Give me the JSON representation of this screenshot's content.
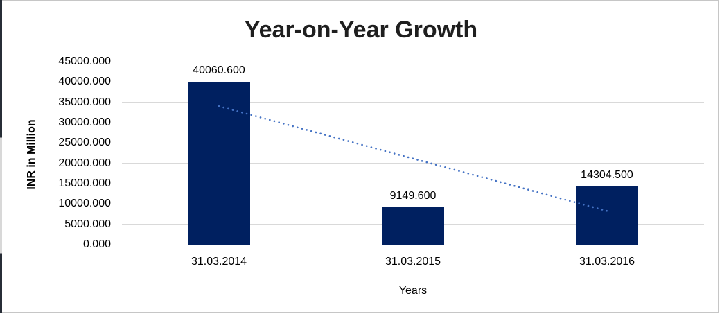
{
  "chart_data": {
    "type": "bar",
    "title": "Year-on-Year Growth",
    "categories": [
      "31.03.2014",
      "31.03.2015",
      "31.03.2016"
    ],
    "values": [
      40060.6,
      9149.6,
      14304.5
    ],
    "data_labels": [
      "40060.600",
      "9149.600",
      "14304.500"
    ],
    "xlabel": "Years",
    "ylabel": "INR in Million",
    "ylim": [
      0,
      45000
    ],
    "ytick_step": 5000,
    "ytick_labels": [
      "0.000",
      "5000.000",
      "10000.000",
      "15000.000",
      "20000.000",
      "25000.000",
      "30000.000",
      "35000.000",
      "40000.000",
      "45000.000"
    ],
    "grid": true,
    "legend_position": "none",
    "bar_color": "#002060",
    "gridline_color": "#D9D9D9",
    "axis_line_color": "#BFBFBF",
    "label_color": "#000000",
    "title_color": "#1F1F1F",
    "trendline": {
      "type": "linear",
      "style": "dotted",
      "color": "#4472C4",
      "start_value": 34050,
      "end_value": 8294
    }
  }
}
